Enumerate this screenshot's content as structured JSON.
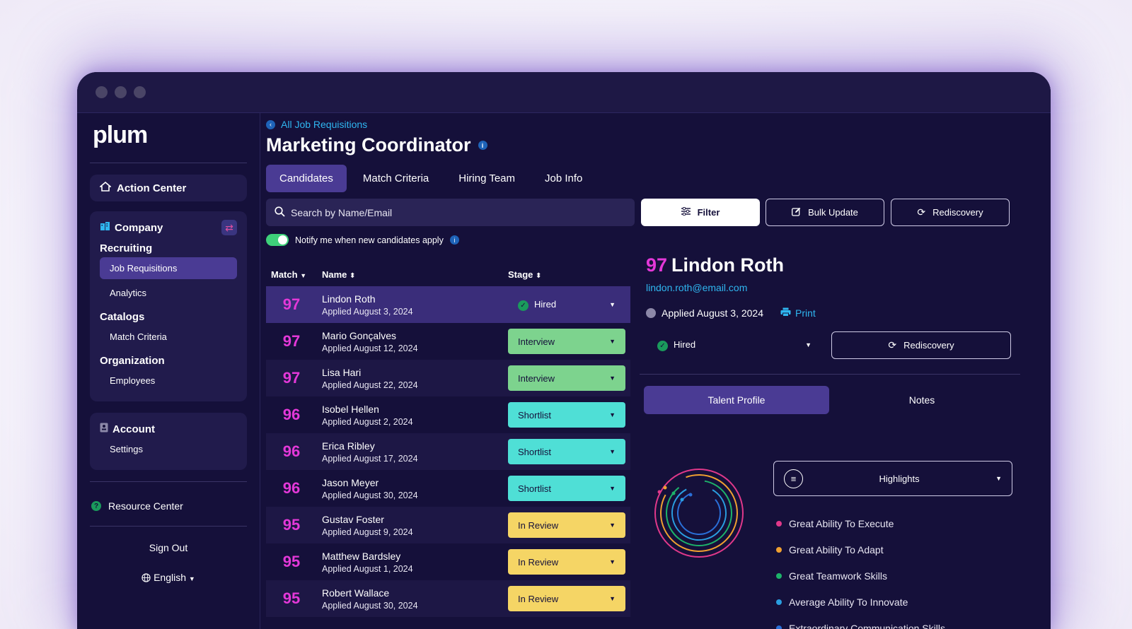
{
  "sidebar": {
    "logo": "plum",
    "action_center": "Action Center",
    "company": "Company",
    "recruiting": "Recruiting",
    "job_requisitions": "Job Requisitions",
    "analytics": "Analytics",
    "catalogs": "Catalogs",
    "match_criteria": "Match Criteria",
    "organization": "Organization",
    "employees": "Employees",
    "account": "Account",
    "settings": "Settings",
    "resource_center": "Resource Center",
    "sign_out": "Sign Out",
    "language": "English"
  },
  "header": {
    "breadcrumb": "All Job Requisitions",
    "title": "Marketing Coordinator",
    "tabs": [
      "Candidates",
      "Match Criteria",
      "Hiring Team",
      "Job Info"
    ]
  },
  "toolbar": {
    "search_placeholder": "Search by Name/Email",
    "filter": "Filter",
    "bulk_update": "Bulk Update",
    "rediscovery": "Rediscovery",
    "notify": "Notify me when new candidates apply"
  },
  "table": {
    "columns": [
      "Match",
      "Name",
      "Stage"
    ],
    "rows": [
      {
        "score": "97",
        "name": "Lindon Roth",
        "applied": "Applied August 3, 2024",
        "stage": "Hired"
      },
      {
        "score": "97",
        "name": "Mario Gonçalves",
        "applied": "Applied August 12, 2024",
        "stage": "Interview"
      },
      {
        "score": "97",
        "name": "Lisa Hari",
        "applied": "Applied August 22, 2024",
        "stage": "Interview"
      },
      {
        "score": "96",
        "name": "Isobel Hellen",
        "applied": "Applied August 2, 2024",
        "stage": "Shortlist"
      },
      {
        "score": "96",
        "name": "Erica Ribley",
        "applied": "Applied August 17, 2024",
        "stage": "Shortlist"
      },
      {
        "score": "96",
        "name": "Jason Meyer",
        "applied": "Applied August 30, 2024",
        "stage": "Shortlist"
      },
      {
        "score": "95",
        "name": "Gustav Foster",
        "applied": "Applied August 9, 2024",
        "stage": "In Review"
      },
      {
        "score": "95",
        "name": "Matthew Bardsley",
        "applied": "Applied August 1, 2024",
        "stage": "In Review"
      },
      {
        "score": "95",
        "name": "Robert Wallace",
        "applied": "Applied August 30, 2024",
        "stage": "In Review"
      }
    ]
  },
  "stage_colors": {
    "Interview": "#7dd38e",
    "Shortlist": "#4fdfd6",
    "In Review": "#f5d565"
  },
  "detail": {
    "score": "97",
    "name": "Lindon Roth",
    "email": "lindon.roth@email.com",
    "applied": "Applied August 3, 2024",
    "print": "Print",
    "stage": "Hired",
    "rediscovery": "Rediscovery",
    "tabs": [
      "Talent Profile",
      "Notes"
    ],
    "highlights_label": "Highlights",
    "traits": [
      {
        "label": "Great Ability To Execute",
        "color": "#e0388a"
      },
      {
        "label": "Great Ability To Adapt",
        "color": "#f0a030"
      },
      {
        "label": "Great Teamwork Skills",
        "color": "#1db36a"
      },
      {
        "label": "Average Ability To Innovate",
        "color": "#2a9ee0"
      },
      {
        "label": "Extraordinary Communication Skills",
        "color": "#2a6fd8"
      }
    ]
  }
}
